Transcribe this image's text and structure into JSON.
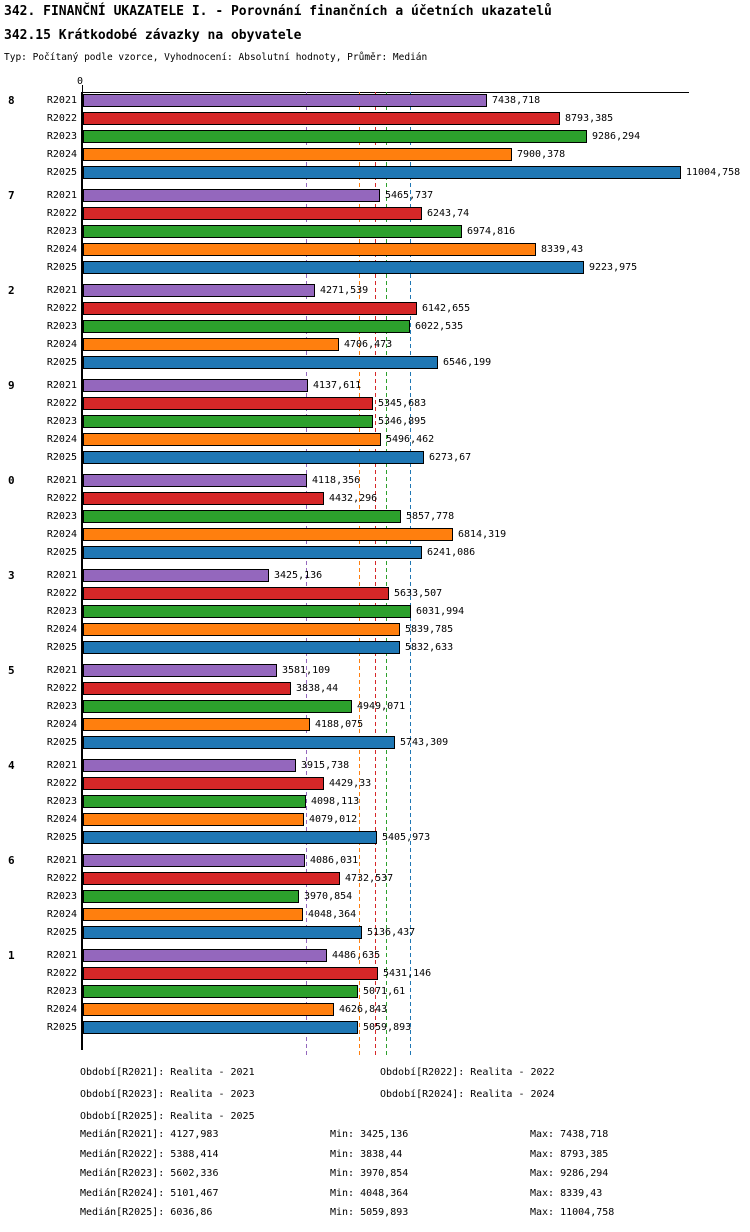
{
  "header": {
    "title_line1": "342. FINANČNÍ UKAZATELE I. - Porovnání finančních a účetních ukazatelů",
    "title_line2": "342.15 Krátkodobé závazky na obyvatele",
    "meta": "Typ: Počítaný podle vzorce, Vyhodnocení: Absolutní hodnoty, Průměr: Medián"
  },
  "chart_data": {
    "type": "bar",
    "orientation": "horizontal",
    "axis_zero_label": "0",
    "xlim": [
      0,
      11020
    ],
    "grid": "median-guides-only",
    "series_names": [
      "R2021",
      "R2022",
      "R2023",
      "R2024",
      "R2025"
    ],
    "series_colors": {
      "R2021": "#9467bd",
      "R2022": "#d62728",
      "R2023": "#2ca02c",
      "R2024": "#ff7f0e",
      "R2025": "#1f77b4"
    },
    "median_guides": [
      {
        "series": "R2021",
        "value": 4127.983,
        "color": "#9467bd"
      },
      {
        "series": "R2022",
        "value": 5388.414,
        "color": "#d62728"
      },
      {
        "series": "R2023",
        "value": 5602.336,
        "color": "#2ca02c"
      },
      {
        "series": "R2024",
        "value": 5101.467,
        "color": "#ff7f0e"
      },
      {
        "series": "R2025",
        "value": 6036.86,
        "color": "#1f77b4"
      }
    ],
    "groups": [
      {
        "label": "8",
        "values": [
          7438.718,
          8793.385,
          9286.294,
          7900.378,
          11004.758
        ],
        "value_labels": [
          "7438,718",
          "8793,385",
          "9286,294",
          "7900,378",
          "11004,758"
        ]
      },
      {
        "label": "7",
        "values": [
          5465.737,
          6243.74,
          6974.816,
          8339.43,
          9223.975
        ],
        "value_labels": [
          "5465,737",
          "6243,74",
          "6974,816",
          "8339,43",
          "9223,975"
        ]
      },
      {
        "label": "2",
        "values": [
          4271.539,
          6142.655,
          6022.535,
          4706.473,
          6546.199
        ],
        "value_labels": [
          "4271,539",
          "6142,655",
          "6022,535",
          "4706,473",
          "6546,199"
        ]
      },
      {
        "label": "9",
        "values": [
          4137.611,
          5345.683,
          5346.895,
          5496.462,
          6273.67
        ],
        "value_labels": [
          "4137,611",
          "5345,683",
          "5346,895",
          "5496,462",
          "6273,67"
        ]
      },
      {
        "label": "0",
        "values": [
          4118.356,
          4432.296,
          5857.778,
          6814.319,
          6241.086
        ],
        "value_labels": [
          "4118,356",
          "4432,296",
          "5857,778",
          "6814,319",
          "6241,086"
        ]
      },
      {
        "label": "3",
        "values": [
          3425.136,
          5633.507,
          6031.994,
          5839.785,
          5832.633
        ],
        "value_labels": [
          "3425,136",
          "5633,507",
          "6031,994",
          "5839,785",
          "5832,633"
        ]
      },
      {
        "label": "5",
        "values": [
          3581.109,
          3838.44,
          4949.071,
          4188.075,
          5743.309
        ],
        "value_labels": [
          "3581,109",
          "3838,44",
          "4949,071",
          "4188,075",
          "5743,309"
        ]
      },
      {
        "label": "4",
        "values": [
          3915.738,
          4429.33,
          4098.113,
          4079.012,
          5405.973
        ],
        "value_labels": [
          "3915,738",
          "4429,33",
          "4098,113",
          "4079,012",
          "5405,973"
        ]
      },
      {
        "label": "6",
        "values": [
          4086.031,
          4732.537,
          3970.854,
          4048.364,
          5136.437
        ],
        "value_labels": [
          "4086,031",
          "4732,537",
          "3970,854",
          "4048,364",
          "5136,437"
        ]
      },
      {
        "label": "1",
        "values": [
          4486.635,
          5431.146,
          5071.61,
          4626.843,
          5059.893
        ],
        "value_labels": [
          "4486,635",
          "5431,146",
          "5071,61",
          "4626,843",
          "5059,893"
        ]
      }
    ]
  },
  "legend": {
    "rows": [
      [
        "Období[R2021]: Realita - 2021",
        "Období[R2022]: Realita - 2022"
      ],
      [
        "Období[R2023]: Realita - 2023",
        "Období[R2024]: Realita - 2024"
      ],
      [
        "Období[R2025]: Realita - 2025"
      ]
    ]
  },
  "stats": [
    {
      "median": "Medián[R2021]: 4127,983",
      "min": "Min: 3425,136",
      "max": "Max: 7438,718"
    },
    {
      "median": "Medián[R2022]: 5388,414",
      "min": "Min: 3838,44",
      "max": "Max: 8793,385"
    },
    {
      "median": "Medián[R2023]: 5602,336",
      "min": "Min: 3970,854",
      "max": "Max: 9286,294"
    },
    {
      "median": "Medián[R2024]: 5101,467",
      "min": "Min: 4048,364",
      "max": "Max: 8339,43"
    },
    {
      "median": "Medián[R2025]: 6036,86",
      "min": "Min: 5059,893",
      "max": "Max: 11004,758"
    }
  ]
}
